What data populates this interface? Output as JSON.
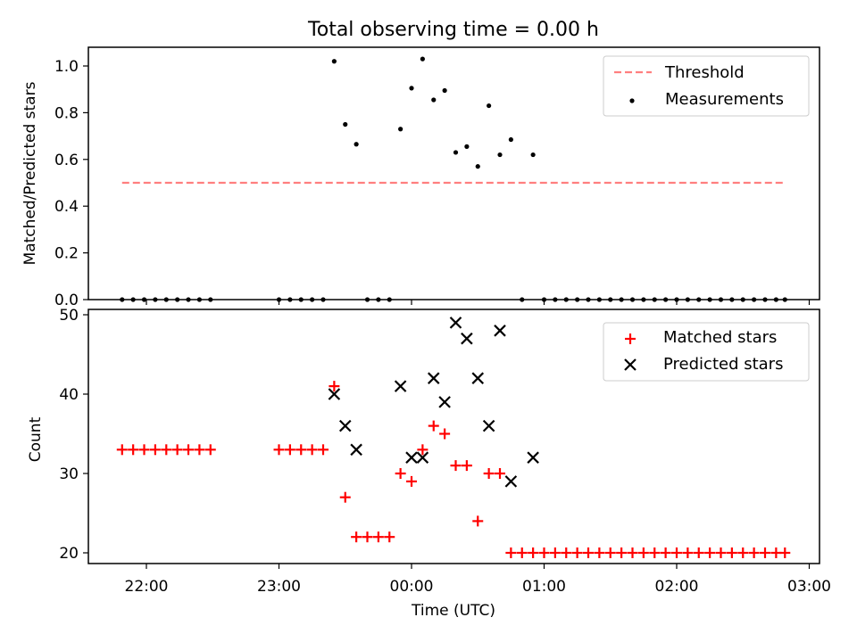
{
  "title": "Total observing time = 0.00 h",
  "chart_data": [
    {
      "type": "scatter",
      "title": "Total observing time = 0.00 h",
      "xlabel": "",
      "ylabel": "Matched/Predicted stars",
      "ylim": [
        0,
        1.09
      ],
      "yticks": [
        "0.0",
        "0.2",
        "0.4",
        "0.6",
        "0.8",
        "1.0"
      ],
      "ytick_values": [
        0,
        0.2,
        0.4,
        0.6,
        0.8,
        1.0
      ],
      "legend_position": "top-right",
      "threshold": {
        "name": "Threshold",
        "value": 0.5,
        "x_start": "21:49",
        "x_end": "02:49",
        "color": "#ff7f7f"
      },
      "series": [
        {
          "name": "Measurements",
          "color": "#000000",
          "points": [
            [
              "21:49",
              0
            ],
            [
              "21:54",
              0
            ],
            [
              "21:59",
              0
            ],
            [
              "22:04",
              0
            ],
            [
              "22:09",
              0
            ],
            [
              "22:14",
              0
            ],
            [
              "22:19",
              0
            ],
            [
              "22:24",
              0
            ],
            [
              "22:29",
              0
            ],
            [
              "23:00",
              0
            ],
            [
              "23:05",
              0
            ],
            [
              "23:10",
              0
            ],
            [
              "23:15",
              0
            ],
            [
              "23:20",
              0
            ],
            [
              "23:25",
              1.02
            ],
            [
              "23:30",
              0.75
            ],
            [
              "23:35",
              0.665
            ],
            [
              "23:40",
              0
            ],
            [
              "23:45",
              0
            ],
            [
              "23:50",
              0
            ],
            [
              "23:55",
              0.73
            ],
            [
              "00:00",
              0.905
            ],
            [
              "00:05",
              1.03
            ],
            [
              "00:10",
              0.855
            ],
            [
              "00:15",
              0.895
            ],
            [
              "00:20",
              0.63
            ],
            [
              "00:25",
              0.655
            ],
            [
              "00:30",
              0.57
            ],
            [
              "00:35",
              0.83
            ],
            [
              "00:40",
              0.62
            ],
            [
              "00:45",
              0.685
            ],
            [
              "00:50",
              0
            ],
            [
              "00:55",
              0.62
            ],
            [
              "01:00",
              0
            ],
            [
              "01:05",
              0
            ],
            [
              "01:10",
              0
            ],
            [
              "01:15",
              0
            ],
            [
              "01:20",
              0
            ],
            [
              "01:25",
              0
            ],
            [
              "01:30",
              0
            ],
            [
              "01:35",
              0
            ],
            [
              "01:40",
              0
            ],
            [
              "01:45",
              0
            ],
            [
              "01:50",
              0
            ],
            [
              "01:55",
              0
            ],
            [
              "02:00",
              0
            ],
            [
              "02:05",
              0
            ],
            [
              "02:10",
              0
            ],
            [
              "02:15",
              0
            ],
            [
              "02:20",
              0
            ],
            [
              "02:25",
              0
            ],
            [
              "02:30",
              0
            ],
            [
              "02:35",
              0
            ],
            [
              "02:40",
              0
            ],
            [
              "02:45",
              0
            ],
            [
              "02:49",
              0
            ]
          ]
        }
      ]
    },
    {
      "type": "scatter",
      "title": "",
      "xlabel": "Time (UTC)",
      "ylabel": "Count",
      "ylim": [
        18.5,
        50.5
      ],
      "yticks": [
        "20",
        "30",
        "40",
        "50"
      ],
      "ytick_values": [
        20,
        30,
        40,
        50
      ],
      "xticks": [
        "22:00",
        "23:00",
        "00:00",
        "01:00",
        "02:00",
        "03:00"
      ],
      "legend_position": "top-right",
      "series": [
        {
          "name": "Matched stars",
          "marker": "plus",
          "color": "#ff0000",
          "points": [
            [
              "21:49",
              33
            ],
            [
              "21:54",
              33
            ],
            [
              "21:59",
              33
            ],
            [
              "22:04",
              33
            ],
            [
              "22:09",
              33
            ],
            [
              "22:14",
              33
            ],
            [
              "22:19",
              33
            ],
            [
              "22:24",
              33
            ],
            [
              "22:29",
              33
            ],
            [
              "23:00",
              33
            ],
            [
              "23:05",
              33
            ],
            [
              "23:10",
              33
            ],
            [
              "23:15",
              33
            ],
            [
              "23:20",
              33
            ],
            [
              "23:25",
              41
            ],
            [
              "23:30",
              27
            ],
            [
              "23:35",
              22
            ],
            [
              "23:40",
              22
            ],
            [
              "23:45",
              22
            ],
            [
              "23:50",
              22
            ],
            [
              "23:55",
              30
            ],
            [
              "00:00",
              29
            ],
            [
              "00:05",
              33
            ],
            [
              "00:10",
              36
            ],
            [
              "00:15",
              35
            ],
            [
              "00:20",
              31
            ],
            [
              "00:25",
              31
            ],
            [
              "00:30",
              24
            ],
            [
              "00:35",
              30
            ],
            [
              "00:40",
              30
            ],
            [
              "00:45",
              20
            ],
            [
              "00:50",
              20
            ],
            [
              "00:55",
              20
            ],
            [
              "01:00",
              20
            ],
            [
              "01:05",
              20
            ],
            [
              "01:10",
              20
            ],
            [
              "01:15",
              20
            ],
            [
              "01:20",
              20
            ],
            [
              "01:25",
              20
            ],
            [
              "01:30",
              20
            ],
            [
              "01:35",
              20
            ],
            [
              "01:40",
              20
            ],
            [
              "01:45",
              20
            ],
            [
              "01:50",
              20
            ],
            [
              "01:55",
              20
            ],
            [
              "02:00",
              20
            ],
            [
              "02:05",
              20
            ],
            [
              "02:10",
              20
            ],
            [
              "02:15",
              20
            ],
            [
              "02:20",
              20
            ],
            [
              "02:25",
              20
            ],
            [
              "02:30",
              20
            ],
            [
              "02:35",
              20
            ],
            [
              "02:40",
              20
            ],
            [
              "02:45",
              20
            ],
            [
              "02:49",
              20
            ]
          ]
        },
        {
          "name": "Predicted stars",
          "marker": "x",
          "color": "#000000",
          "points": [
            [
              "23:25",
              40
            ],
            [
              "23:30",
              36
            ],
            [
              "23:35",
              33
            ],
            [
              "23:55",
              41
            ],
            [
              "00:00",
              32
            ],
            [
              "00:05",
              32
            ],
            [
              "00:10",
              42
            ],
            [
              "00:15",
              39
            ],
            [
              "00:20",
              49
            ],
            [
              "00:25",
              47
            ],
            [
              "00:30",
              42
            ],
            [
              "00:35",
              36
            ],
            [
              "00:40",
              48
            ],
            [
              "00:45",
              29
            ],
            [
              "00:55",
              32
            ]
          ]
        }
      ]
    }
  ]
}
